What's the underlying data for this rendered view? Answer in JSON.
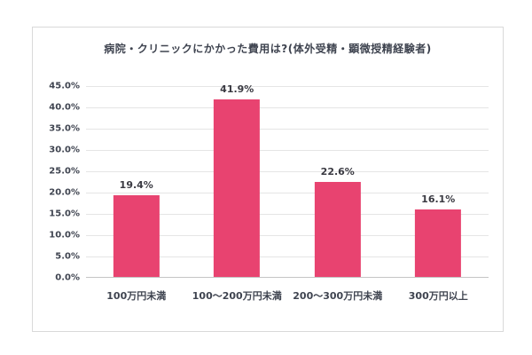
{
  "chart_data": {
    "type": "bar",
    "title": "病院・クリニックにかかった費用は?(体外受精・顕微授精経験者)",
    "categories": [
      "100万円未満",
      "100〜200万円未満",
      "200〜300万円未満",
      "300万円以上"
    ],
    "values": [
      19.4,
      41.9,
      22.6,
      16.1
    ],
    "value_labels": [
      "19.4%",
      "41.9%",
      "22.6%",
      "16.1%"
    ],
    "yticks": [
      "0.0%",
      "5.0%",
      "10.0%",
      "15.0%",
      "20.0%",
      "25.0%",
      "30.0%",
      "35.0%",
      "40.0%",
      "45.0%"
    ],
    "ylim": [
      0,
      45
    ],
    "xlabel": "",
    "ylabel": "",
    "grid": true,
    "legend": false
  },
  "colors": {
    "bar": "#e84370",
    "text": "#3f4450",
    "value_text": "#3a3a42",
    "grid": "#e5e5e5",
    "axis": "#c4c4c4",
    "panel_border": "#d9d9d9",
    "background": "#ffffff"
  }
}
